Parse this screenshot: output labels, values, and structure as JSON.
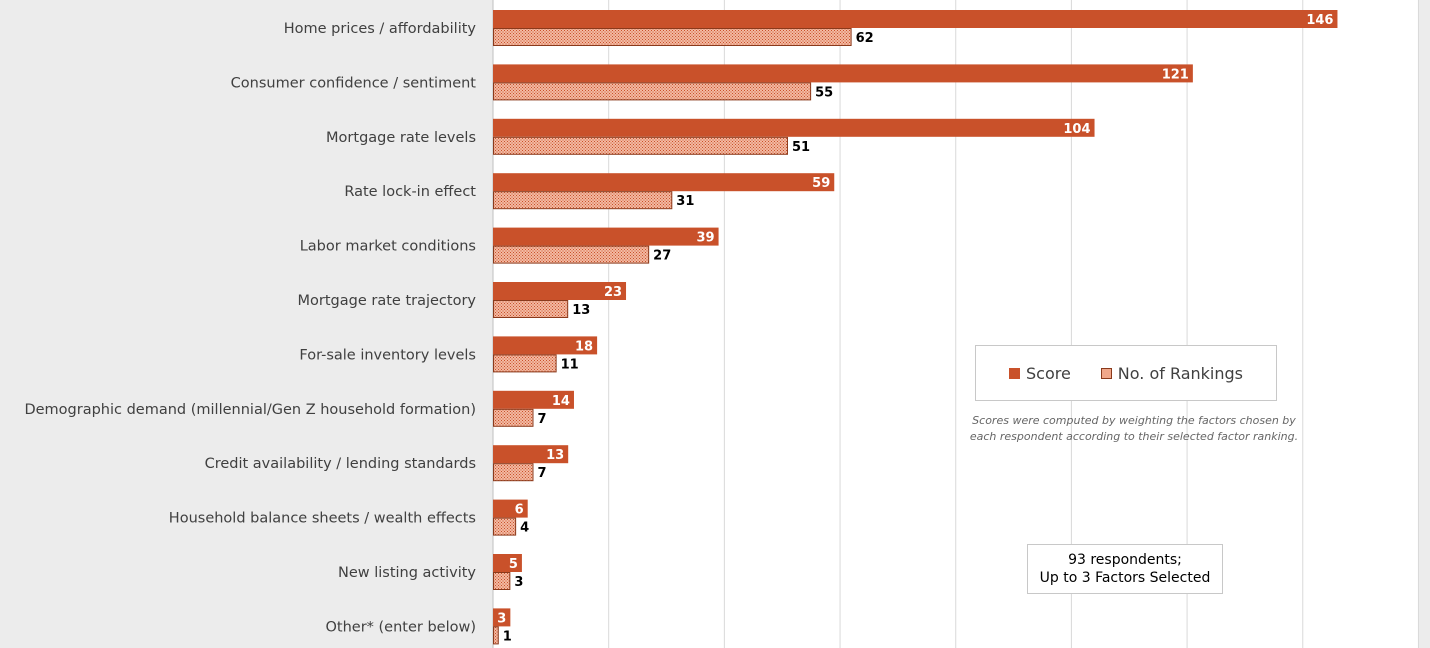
{
  "chart_data": {
    "type": "bar",
    "orientation": "horizontal",
    "categories": [
      "Home prices / affordability",
      "Consumer confidence / sentiment",
      "Mortgage rate levels",
      "Rate lock-in effect",
      "Labor market conditions",
      "Mortgage rate trajectory",
      "For-sale inventory levels",
      "Demographic demand (millennial/Gen Z household formation)",
      "Credit availability / lending standards",
      "Household balance sheets / wealth effects",
      "New listing activity",
      "Other* (enter below)"
    ],
    "series": [
      {
        "name": "Score",
        "values": [
          146,
          121,
          104,
          59,
          39,
          23,
          18,
          14,
          13,
          6,
          5,
          3
        ]
      },
      {
        "name": "No. of Rankings",
        "values": [
          62,
          55,
          51,
          31,
          27,
          13,
          11,
          7,
          7,
          4,
          3,
          1
        ]
      }
    ],
    "xlim": [
      0,
      160
    ],
    "grid": true,
    "legend_position": "right",
    "colors": {
      "score": "#c9512a",
      "rankings": "#f0a78a",
      "rankings_border": "#8a3a1c"
    }
  },
  "legend": {
    "score": "Score",
    "rankings": "No. of Rankings"
  },
  "footnote": {
    "line1": "Scores were computed by weighting the factors chosen by",
    "line2": "each respondent according to their selected factor ranking."
  },
  "note": {
    "line1": "93 respondents;",
    "line2": "Up to 3 Factors Selected"
  }
}
